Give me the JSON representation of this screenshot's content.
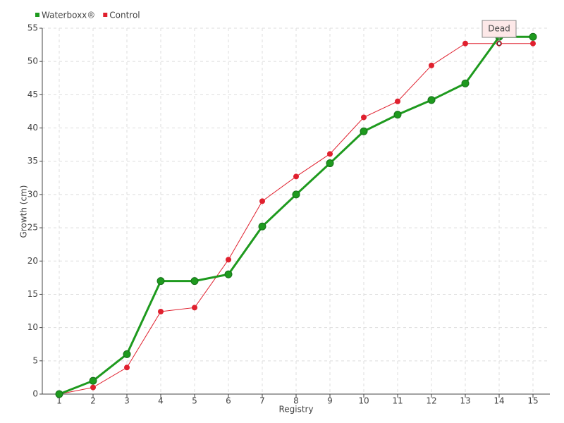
{
  "chart_data": {
    "type": "line",
    "x_label": "Registry",
    "y_label": "Growth (cm)",
    "categories": [
      "1",
      "2",
      "3",
      "4",
      "5",
      "6",
      "7",
      "8",
      "9",
      "10",
      "11",
      "12",
      "13",
      "14",
      "15"
    ],
    "series": [
      {
        "name": "Waterboxx®",
        "color": "#1e9a1e",
        "values": [
          0,
          2,
          6,
          17,
          17,
          18,
          25.2,
          30,
          34.7,
          39.5,
          42,
          44.2,
          46.7,
          53.7,
          53.7
        ]
      },
      {
        "name": "Control",
        "color": "#e0202e",
        "values": [
          0,
          1,
          4,
          12.4,
          13,
          20.2,
          29,
          32.7,
          36.1,
          41.6,
          44,
          49.4,
          52.7,
          52.7,
          52.7
        ]
      }
    ],
    "annotations": [
      {
        "text": "Dead",
        "category": "14"
      }
    ],
    "ylim": [
      0,
      55
    ],
    "yticks": [
      0,
      5,
      10,
      15,
      20,
      25,
      30,
      35,
      40,
      45,
      50,
      55
    ],
    "grid": true,
    "legend": "top-left"
  }
}
